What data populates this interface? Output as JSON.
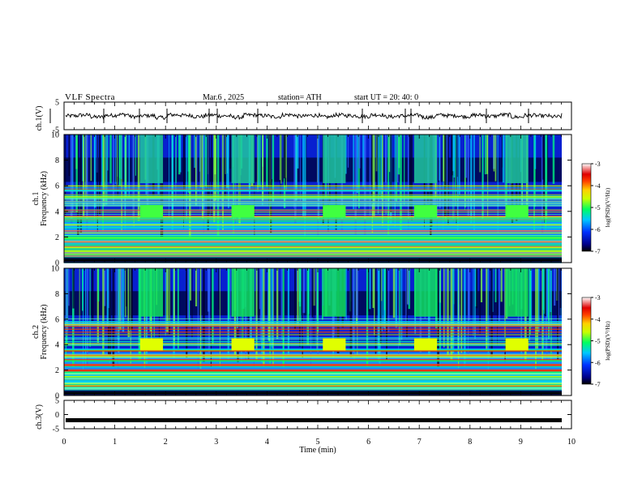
{
  "header": {
    "title": "VLF  Spectra",
    "date": "Mar.6  , 2025",
    "station": "station= ATH",
    "start_ut": "start  UT  =    20: 40: 0"
  },
  "chart_data": [
    {
      "type": "line",
      "id": "ch1-waveform",
      "ylabel": "ch.1(V)",
      "ylim": [
        -5,
        5
      ],
      "yticks": [
        "5",
        "-5"
      ],
      "xlim": [
        0,
        10
      ],
      "series": [
        {
          "values": [
            0.0,
            0.3,
            -0.4,
            0.2,
            0.5,
            -0.3,
            0.1,
            -0.6,
            0.4,
            0.2,
            -0.2,
            0.3,
            0.0,
            -0.5,
            0.3,
            0.1,
            -0.3,
            0.4,
            -0.1,
            0.2,
            -0.4,
            0.3,
            0.1,
            -0.2,
            0.4,
            -0.3,
            0.0,
            0.2,
            -0.5,
            0.3,
            0.1,
            -0.2,
            0.3,
            -0.1,
            0.4,
            -0.4,
            0.2,
            0.0,
            -0.3,
            0.3
          ]
        }
      ]
    },
    {
      "type": "heatmap",
      "id": "ch1-spectrogram",
      "ylabel": "ch.1\nFrequency  (kHz)",
      "xlim": [
        0,
        10
      ],
      "ylim": [
        0,
        10
      ],
      "yticks": [
        "0",
        "2",
        "4",
        "6",
        "8",
        "10"
      ],
      "colorbar": {
        "label": "log(PSD)(V²/Hz)",
        "range": [
          -7,
          -3
        ],
        "ticks": [
          "-3",
          "-4",
          "-5",
          "-6",
          "-7"
        ]
      },
      "bursts_min": [
        1.5,
        3.3,
        5.1,
        6.9,
        8.7
      ]
    },
    {
      "type": "heatmap",
      "id": "ch2-spectrogram",
      "ylabel": "ch.2\nFrequency  (kHz)",
      "xlim": [
        0,
        10
      ],
      "ylim": [
        0,
        10
      ],
      "yticks": [
        "0",
        "2",
        "4",
        "6",
        "8",
        "10"
      ],
      "colorbar": {
        "label": "log(PSD)(V²/Hz)",
        "range": [
          -7,
          -3
        ],
        "ticks": [
          "-3",
          "-4",
          "-5",
          "-6",
          "-7"
        ]
      },
      "bursts_min": [
        1.5,
        3.3,
        5.1,
        6.9,
        8.7
      ]
    },
    {
      "type": "line",
      "id": "ch3-waveform",
      "ylabel": "ch.3(V)",
      "ylim": [
        -5,
        5
      ],
      "yticks": [
        "5",
        "0",
        "-5"
      ],
      "xlim": [
        0,
        10
      ],
      "series": [
        {
          "values": [
            -2,
            -2
          ]
        }
      ]
    }
  ],
  "xaxis": {
    "label": "Time  (min)",
    "ticks": [
      "0",
      "1",
      "2",
      "3",
      "4",
      "5",
      "6",
      "7",
      "8",
      "9",
      "10"
    ]
  }
}
